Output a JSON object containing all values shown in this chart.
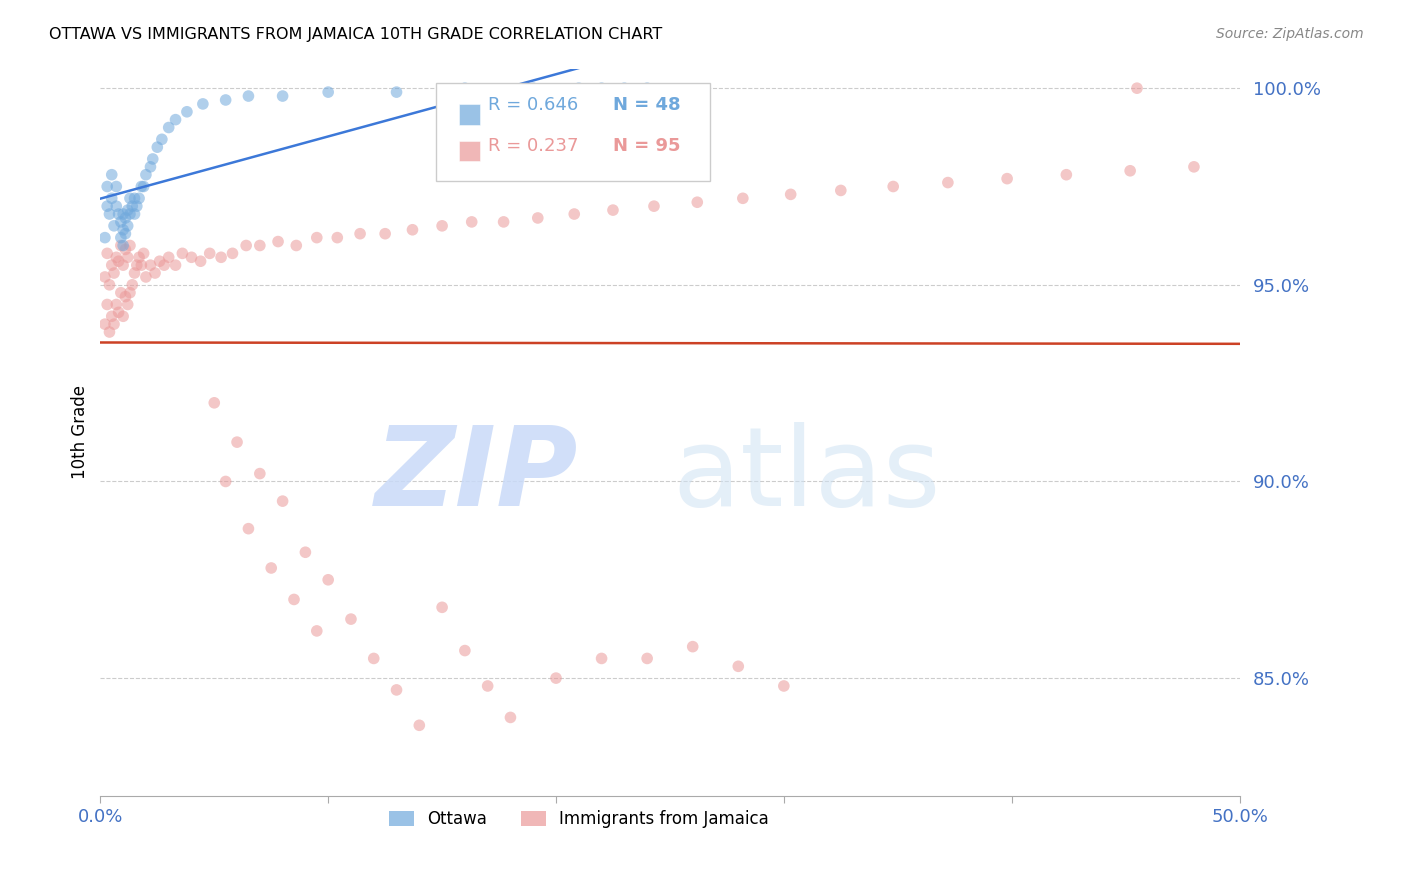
{
  "title": "OTTAWA VS IMMIGRANTS FROM JAMAICA 10TH GRADE CORRELATION CHART",
  "source": "Source: ZipAtlas.com",
  "ylabel": "10th Grade",
  "xlim": [
    0.0,
    0.5
  ],
  "ylim": [
    0.82,
    1.005
  ],
  "xticks": [
    0.0,
    0.1,
    0.2,
    0.3,
    0.4,
    0.5
  ],
  "yticks": [
    0.85,
    0.9,
    0.95,
    1.0
  ],
  "yticklabels": [
    "85.0%",
    "90.0%",
    "95.0%",
    "100.0%"
  ],
  "ytick_color": "#4472c4",
  "xtick_color": "#4472c4",
  "color_ottawa": "#6fa8dc",
  "color_jamaica": "#ea9999",
  "line_color_ottawa": "#3c78d8",
  "line_color_jamaica": "#cc4125",
  "marker_size": 70,
  "marker_alpha": 0.55,
  "background_color": "#ffffff",
  "grid_color": "#cccccc",
  "title_color": "#000000",
  "watermark_zip_color": "#c9daf8",
  "watermark_atlas_color": "#cfe2f3",
  "ottawa_x": [
    0.002,
    0.003,
    0.003,
    0.004,
    0.005,
    0.005,
    0.006,
    0.007,
    0.007,
    0.008,
    0.009,
    0.009,
    0.01,
    0.01,
    0.01,
    0.011,
    0.011,
    0.012,
    0.012,
    0.013,
    0.013,
    0.014,
    0.015,
    0.015,
    0.016,
    0.017,
    0.018,
    0.019,
    0.02,
    0.022,
    0.023,
    0.025,
    0.027,
    0.03,
    0.033,
    0.038,
    0.045,
    0.055,
    0.065,
    0.08,
    0.1,
    0.13,
    0.16,
    0.19,
    0.21,
    0.22,
    0.23,
    0.24
  ],
  "ottawa_y": [
    0.962,
    0.97,
    0.975,
    0.968,
    0.972,
    0.978,
    0.965,
    0.97,
    0.975,
    0.968,
    0.962,
    0.966,
    0.96,
    0.964,
    0.968,
    0.963,
    0.967,
    0.965,
    0.969,
    0.968,
    0.972,
    0.97,
    0.968,
    0.972,
    0.97,
    0.972,
    0.975,
    0.975,
    0.978,
    0.98,
    0.982,
    0.985,
    0.987,
    0.99,
    0.992,
    0.994,
    0.996,
    0.997,
    0.998,
    0.998,
    0.999,
    0.999,
    1.0,
    1.0,
    1.0,
    1.0,
    1.0,
    1.0
  ],
  "jamaica_x": [
    0.002,
    0.002,
    0.003,
    0.003,
    0.004,
    0.004,
    0.005,
    0.005,
    0.006,
    0.006,
    0.007,
    0.007,
    0.008,
    0.008,
    0.009,
    0.009,
    0.01,
    0.01,
    0.011,
    0.011,
    0.012,
    0.012,
    0.013,
    0.013,
    0.014,
    0.015,
    0.016,
    0.017,
    0.018,
    0.019,
    0.02,
    0.022,
    0.024,
    0.026,
    0.028,
    0.03,
    0.033,
    0.036,
    0.04,
    0.044,
    0.048,
    0.053,
    0.058,
    0.064,
    0.07,
    0.078,
    0.086,
    0.095,
    0.104,
    0.114,
    0.125,
    0.137,
    0.15,
    0.163,
    0.177,
    0.192,
    0.208,
    0.225,
    0.243,
    0.262,
    0.282,
    0.303,
    0.325,
    0.348,
    0.372,
    0.398,
    0.424,
    0.452,
    0.48,
    0.05,
    0.06,
    0.07,
    0.08,
    0.09,
    0.1,
    0.11,
    0.12,
    0.13,
    0.14,
    0.15,
    0.16,
    0.17,
    0.18,
    0.2,
    0.22,
    0.24,
    0.26,
    0.28,
    0.3,
    0.055,
    0.065,
    0.075,
    0.085,
    0.095,
    0.455
  ],
  "jamaica_y": [
    0.94,
    0.952,
    0.945,
    0.958,
    0.938,
    0.95,
    0.942,
    0.955,
    0.94,
    0.953,
    0.945,
    0.957,
    0.943,
    0.956,
    0.948,
    0.96,
    0.942,
    0.955,
    0.947,
    0.959,
    0.945,
    0.957,
    0.948,
    0.96,
    0.95,
    0.953,
    0.955,
    0.957,
    0.955,
    0.958,
    0.952,
    0.955,
    0.953,
    0.956,
    0.955,
    0.957,
    0.955,
    0.958,
    0.957,
    0.956,
    0.958,
    0.957,
    0.958,
    0.96,
    0.96,
    0.961,
    0.96,
    0.962,
    0.962,
    0.963,
    0.963,
    0.964,
    0.965,
    0.966,
    0.966,
    0.967,
    0.968,
    0.969,
    0.97,
    0.971,
    0.972,
    0.973,
    0.974,
    0.975,
    0.976,
    0.977,
    0.978,
    0.979,
    0.98,
    0.92,
    0.91,
    0.902,
    0.895,
    0.882,
    0.875,
    0.865,
    0.855,
    0.847,
    0.838,
    0.868,
    0.857,
    0.848,
    0.84,
    0.85,
    0.855,
    0.855,
    0.858,
    0.853,
    0.848,
    0.9,
    0.888,
    0.878,
    0.87,
    0.862,
    1.0
  ]
}
